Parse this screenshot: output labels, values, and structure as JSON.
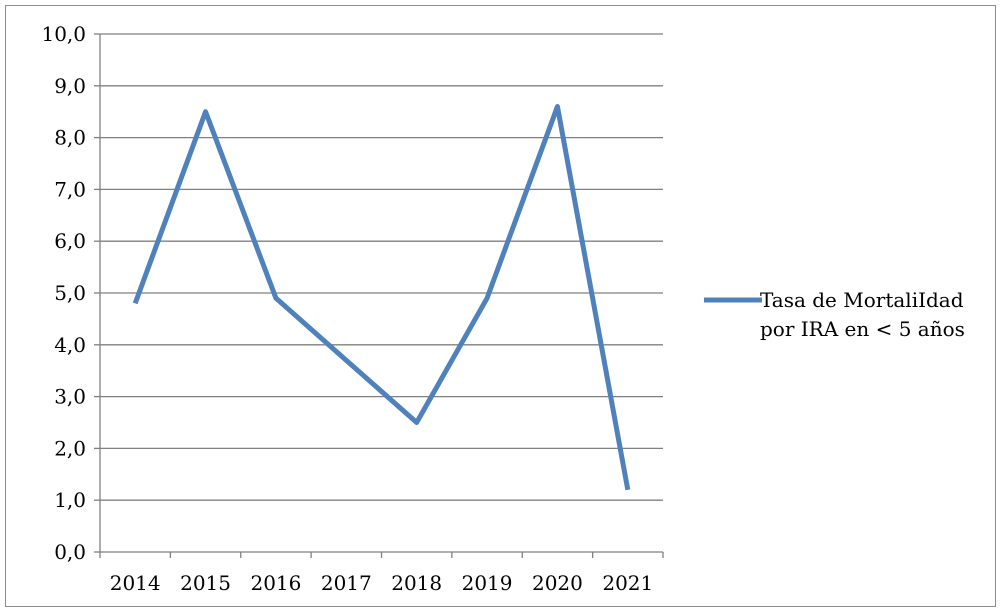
{
  "chart_data": {
    "type": "line",
    "categories": [
      "2014",
      "2015",
      "2016",
      "2017",
      "2018",
      "2019",
      "2020",
      "2021"
    ],
    "series": [
      {
        "name": "Tasa de MortaliIdad por IRA en < 5 años",
        "name_lines": [
          "Tasa de MortaliIdad",
          "por IRA en < 5 años"
        ],
        "values": [
          4.8,
          8.5,
          4.9,
          3.7,
          2.5,
          4.9,
          8.6,
          1.2
        ],
        "color": "#4f81bd"
      }
    ],
    "ylim": [
      0,
      10
    ],
    "yticks": [
      "0,0",
      "1,0",
      "2,0",
      "3,0",
      "4,0",
      "5,0",
      "6,0",
      "7,0",
      "8,0",
      "9,0",
      "10,0"
    ],
    "grid": true,
    "legend": "right",
    "gridline_color": "#808080"
  }
}
